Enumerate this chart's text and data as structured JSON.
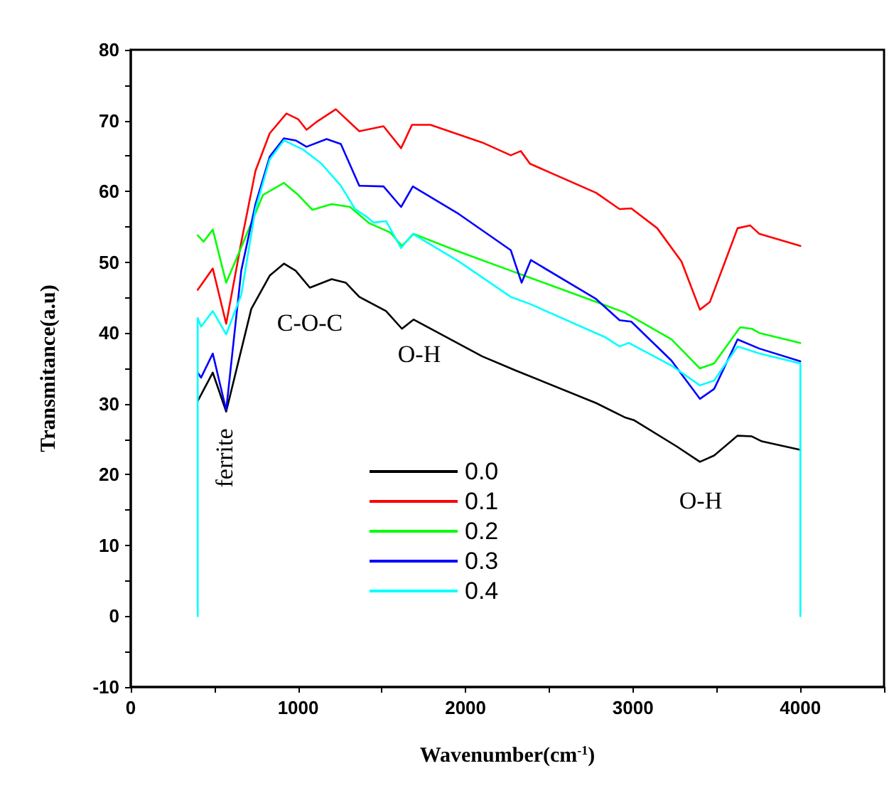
{
  "chart_data": {
    "type": "line",
    "xlabel": "Wavenumber(cm$^{-1}$)",
    "ylabel": "Transmitance(a.u)",
    "xlim": [
      0,
      4500
    ],
    "ylim": [
      -10,
      80
    ],
    "xticks": [
      0,
      {
        "value": 500,
        "label": null
      },
      1000,
      {
        "value": 1500,
        "label": null
      },
      2000,
      {
        "value": 2500,
        "label": null
      },
      3000,
      {
        "value": 3500,
        "label": null
      },
      4000,
      {
        "value": 4500,
        "label": null
      }
    ],
    "yticks": [
      -10,
      {
        "value": -5,
        "label": null
      },
      0,
      {
        "value": 5,
        "label": null
      },
      10,
      {
        "value": 15,
        "label": null
      },
      20,
      {
        "value": 25,
        "label": null
      },
      30,
      {
        "value": 35,
        "label": null
      },
      40,
      {
        "value": 45,
        "label": null
      },
      50,
      {
        "value": 55,
        "label": null
      },
      60,
      {
        "value": 65,
        "label": null
      },
      70,
      {
        "value": 75,
        "label": null
      },
      80
    ],
    "grid": false,
    "legend": "bottom",
    "marker": "none",
    "line_style": "solid",
    "annotations": [
      "ferrite",
      "C-O-C",
      "O-H",
      "O-H"
    ],
    "series": [
      {
        "name": "0.0",
        "color": "#000000",
        "x": [
          400,
          490,
          570,
          720,
          830,
          915,
          985,
          1070,
          1200,
          1285,
          1365,
          1525,
          1620,
          1690,
          2100,
          2300,
          2780,
          2950,
          3005,
          3260,
          3400,
          3485,
          3625,
          3710,
          3770,
          4000
        ],
        "values": [
          30.4,
          34.4,
          28.9,
          43.4,
          48.1,
          49.8,
          48.8,
          46.4,
          47.6,
          47.1,
          45.1,
          43.1,
          40.6,
          41.9,
          36.7,
          34.7,
          30.1,
          28.1,
          27.7,
          24.0,
          21.8,
          22.7,
          25.5,
          25.4,
          24.7,
          23.5
        ]
      },
      {
        "name": "0.1",
        "color": "#ff0000",
        "x": [
          400,
          490,
          570,
          660,
          745,
          830,
          930,
          1000,
          1050,
          1115,
          1225,
          1365,
          1510,
          1615,
          1680,
          1790,
          2100,
          2270,
          2330,
          2385,
          2780,
          2920,
          2990,
          3145,
          3290,
          3400,
          3460,
          3625,
          3700,
          3755,
          4000
        ],
        "values": [
          46.1,
          49.1,
          41.3,
          52.8,
          62.9,
          68.2,
          71.0,
          70.2,
          68.7,
          69.9,
          71.6,
          68.5,
          69.2,
          66.1,
          69.4,
          69.4,
          66.9,
          65.1,
          65.7,
          63.9,
          59.8,
          57.5,
          57.6,
          54.8,
          50.1,
          43.3,
          44.4,
          54.8,
          55.2,
          54.0,
          52.3
        ]
      },
      {
        "name": "0.2",
        "color": "#00ff00",
        "x": [
          400,
          435,
          490,
          570,
          660,
          790,
          915,
          1000,
          1085,
          1200,
          1310,
          1425,
          1550,
          1620,
          1690,
          1960,
          2270,
          2385,
          2780,
          2950,
          3230,
          3400,
          3485,
          3640,
          3710,
          3755,
          4000
        ],
        "values": [
          53.8,
          52.9,
          54.6,
          47.1,
          52.1,
          59.5,
          61.2,
          59.5,
          57.4,
          58.2,
          57.8,
          55.5,
          54.2,
          52.3,
          54.0,
          51.5,
          48.8,
          47.8,
          44.4,
          42.9,
          39.1,
          35.0,
          35.7,
          40.8,
          40.6,
          40.0,
          38.6
        ]
      },
      {
        "name": "0.3",
        "color": "#0000ff",
        "x": [
          400,
          420,
          490,
          570,
          660,
          745,
          830,
          915,
          985,
          1050,
          1170,
          1255,
          1365,
          1510,
          1615,
          1685,
          1960,
          2270,
          2335,
          2390,
          2780,
          2920,
          2990,
          3230,
          3400,
          3485,
          3625,
          3755,
          4000
        ],
        "values": [
          34.4,
          33.7,
          37.1,
          29.1,
          48.8,
          58.2,
          64.9,
          67.5,
          67.2,
          66.3,
          67.4,
          66.7,
          60.8,
          60.7,
          57.8,
          60.7,
          56.8,
          51.7,
          47.1,
          50.3,
          44.8,
          41.8,
          41.6,
          36.1,
          30.7,
          32.1,
          39.1,
          37.8,
          36.0
        ]
      },
      {
        "name": "0.4",
        "color": "#00ffff",
        "x": [
          400,
          400,
          420,
          490,
          570,
          660,
          745,
          830,
          915,
          1030,
          1140,
          1255,
          1340,
          1410,
          1450,
          1525,
          1615,
          1685,
          1960,
          2270,
          2385,
          2835,
          2920,
          2975,
          3230,
          3400,
          3485,
          3625,
          3755,
          4000,
          4000
        ],
        "values": [
          0,
          42.1,
          40.9,
          43.1,
          39.8,
          45.4,
          57.5,
          64.5,
          67.2,
          65.9,
          63.9,
          60.8,
          57.5,
          56.4,
          55.6,
          55.8,
          52.0,
          54.0,
          50.1,
          45.1,
          44.1,
          39.4,
          38.1,
          38.6,
          35.4,
          32.6,
          33.3,
          38.1,
          37.1,
          35.7,
          0
        ]
      }
    ]
  }
}
